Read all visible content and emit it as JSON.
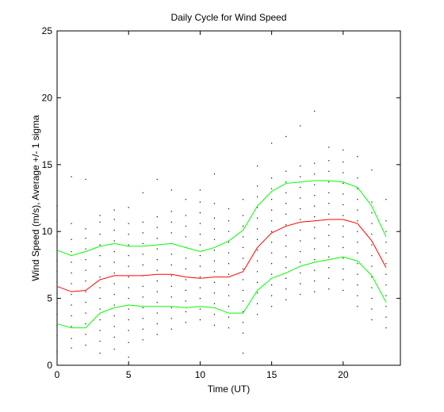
{
  "chart_data": {
    "type": "line",
    "title": "Daily Cycle for Wind Speed",
    "xlabel": "Time (UT)",
    "ylabel": "Wind Speed (m/s), Average +/- 1 sigma",
    "xlim": [
      0,
      24
    ],
    "ylim": [
      0,
      25
    ],
    "xticks": [
      0,
      5,
      10,
      15,
      20
    ],
    "yticks": [
      0,
      5,
      10,
      15,
      20,
      25
    ],
    "grid": false,
    "x": [
      0,
      1,
      2,
      3,
      4,
      5,
      6,
      7,
      8,
      9,
      10,
      11,
      12,
      13,
      14,
      15,
      16,
      17,
      18,
      19,
      20,
      21,
      22,
      23
    ],
    "series": [
      {
        "role": "average",
        "color": "#ff0000",
        "values": [
          5.9,
          5.5,
          5.6,
          6.4,
          6.7,
          6.7,
          6.7,
          6.8,
          6.8,
          6.6,
          6.5,
          6.6,
          6.6,
          7.0,
          8.8,
          9.9,
          10.4,
          10.7,
          10.8,
          10.9,
          10.9,
          10.6,
          9.3,
          7.3
        ]
      },
      {
        "role": "average + 1 sigma",
        "color": "#00ff00",
        "values": [
          8.6,
          8.2,
          8.5,
          8.9,
          9.1,
          8.9,
          8.9,
          9.0,
          9.1,
          8.8,
          8.5,
          8.8,
          9.3,
          10.1,
          11.9,
          13.0,
          13.6,
          13.7,
          13.8,
          13.8,
          13.7,
          13.3,
          11.9,
          9.6
        ]
      },
      {
        "role": "average - 1 sigma",
        "color": "#00ff00",
        "values": [
          3.1,
          2.8,
          2.8,
          3.9,
          4.3,
          4.5,
          4.4,
          4.4,
          4.4,
          4.3,
          4.4,
          4.3,
          3.9,
          3.9,
          5.6,
          6.5,
          6.9,
          7.4,
          7.7,
          7.9,
          8.1,
          7.8,
          6.7,
          4.7
        ]
      }
    ],
    "scatter": {
      "color": "#000000",
      "points": [
        [
          0,
          1.0
        ],
        [
          0,
          2.2
        ],
        [
          0,
          3.0
        ],
        [
          0,
          3.8
        ],
        [
          0,
          4.6
        ],
        [
          0,
          5.4
        ],
        [
          0,
          6.2
        ],
        [
          0,
          7.0
        ],
        [
          0,
          7.8
        ],
        [
          0,
          8.6
        ],
        [
          0,
          9.6
        ],
        [
          0,
          10.8
        ],
        [
          0,
          11.9
        ],
        [
          1,
          1.3
        ],
        [
          1,
          2.0
        ],
        [
          1,
          2.9
        ],
        [
          1,
          3.7
        ],
        [
          1,
          4.5
        ],
        [
          1,
          5.3
        ],
        [
          1,
          6.1
        ],
        [
          1,
          6.9
        ],
        [
          1,
          7.7
        ],
        [
          1,
          8.5
        ],
        [
          1,
          9.4
        ],
        [
          1,
          10.6
        ],
        [
          1,
          14.1
        ],
        [
          2,
          1.5
        ],
        [
          2,
          2.3
        ],
        [
          2,
          3.1
        ],
        [
          2,
          3.9
        ],
        [
          2,
          4.7
        ],
        [
          2,
          5.5
        ],
        [
          2,
          6.3
        ],
        [
          2,
          7.1
        ],
        [
          2,
          7.9
        ],
        [
          2,
          8.7
        ],
        [
          2,
          9.5
        ],
        [
          2,
          10.2
        ],
        [
          2,
          13.9
        ],
        [
          3,
          0.9
        ],
        [
          3,
          1.8
        ],
        [
          3,
          2.6
        ],
        [
          3,
          3.4
        ],
        [
          3,
          4.2
        ],
        [
          3,
          5.0
        ],
        [
          3,
          5.8
        ],
        [
          3,
          6.6
        ],
        [
          3,
          7.4
        ],
        [
          3,
          8.2
        ],
        [
          3,
          9.0
        ],
        [
          3,
          9.8
        ],
        [
          3,
          10.7
        ],
        [
          3,
          11.2
        ],
        [
          4,
          1.2
        ],
        [
          4,
          2.1
        ],
        [
          4,
          2.9
        ],
        [
          4,
          3.7
        ],
        [
          4,
          4.5
        ],
        [
          4,
          5.3
        ],
        [
          4,
          6.1
        ],
        [
          4,
          6.9
        ],
        [
          4,
          7.7
        ],
        [
          4,
          8.5
        ],
        [
          4,
          9.3
        ],
        [
          4,
          10.1
        ],
        [
          4,
          10.9
        ],
        [
          4,
          11.6
        ],
        [
          5,
          0.6
        ],
        [
          5,
          1.7
        ],
        [
          5,
          2.6
        ],
        [
          5,
          3.4
        ],
        [
          5,
          4.2
        ],
        [
          5,
          5.0
        ],
        [
          5,
          5.8
        ],
        [
          5,
          6.6
        ],
        [
          5,
          7.4
        ],
        [
          5,
          8.2
        ],
        [
          5,
          9.0
        ],
        [
          5,
          9.8
        ],
        [
          5,
          10.6
        ],
        [
          5,
          11.8
        ],
        [
          6,
          1.9
        ],
        [
          6,
          2.7
        ],
        [
          6,
          3.5
        ],
        [
          6,
          4.3
        ],
        [
          6,
          5.1
        ],
        [
          6,
          5.9
        ],
        [
          6,
          6.7
        ],
        [
          6,
          7.5
        ],
        [
          6,
          8.3
        ],
        [
          6,
          9.1
        ],
        [
          6,
          9.9
        ],
        [
          6,
          10.7
        ],
        [
          6,
          12.9
        ],
        [
          7,
          2.3
        ],
        [
          7,
          3.1
        ],
        [
          7,
          3.9
        ],
        [
          7,
          4.7
        ],
        [
          7,
          5.5
        ],
        [
          7,
          6.3
        ],
        [
          7,
          7.1
        ],
        [
          7,
          7.9
        ],
        [
          7,
          8.7
        ],
        [
          7,
          9.5
        ],
        [
          7,
          10.3
        ],
        [
          7,
          11.1
        ],
        [
          7,
          13.9
        ],
        [
          8,
          2.7
        ],
        [
          8,
          3.5
        ],
        [
          8,
          4.3
        ],
        [
          8,
          5.1
        ],
        [
          8,
          5.9
        ],
        [
          8,
          6.7
        ],
        [
          8,
          7.5
        ],
        [
          8,
          8.3
        ],
        [
          8,
          9.1
        ],
        [
          8,
          9.9
        ],
        [
          8,
          10.7
        ],
        [
          8,
          11.5
        ],
        [
          8,
          13.1
        ],
        [
          9,
          3.2
        ],
        [
          9,
          4.0
        ],
        [
          9,
          4.8
        ],
        [
          9,
          5.6
        ],
        [
          9,
          6.4
        ],
        [
          9,
          7.2
        ],
        [
          9,
          8.0
        ],
        [
          9,
          8.8
        ],
        [
          9,
          9.6
        ],
        [
          9,
          10.4
        ],
        [
          9,
          11.2
        ],
        [
          9,
          12.4
        ],
        [
          10,
          3.4
        ],
        [
          10,
          4.2
        ],
        [
          10,
          5.0
        ],
        [
          10,
          5.8
        ],
        [
          10,
          6.6
        ],
        [
          10,
          7.4
        ],
        [
          10,
          8.2
        ],
        [
          10,
          9.0
        ],
        [
          10,
          9.8
        ],
        [
          10,
          10.6
        ],
        [
          10,
          11.4
        ],
        [
          10,
          12.2
        ],
        [
          10,
          13.1
        ],
        [
          11,
          3.0
        ],
        [
          11,
          3.8
        ],
        [
          11,
          4.6
        ],
        [
          11,
          5.4
        ],
        [
          11,
          6.2
        ],
        [
          11,
          7.0
        ],
        [
          11,
          7.8
        ],
        [
          11,
          8.6
        ],
        [
          11,
          9.4
        ],
        [
          11,
          10.2
        ],
        [
          11,
          11.0
        ],
        [
          11,
          12.1
        ],
        [
          11,
          14.3
        ],
        [
          12,
          2.8
        ],
        [
          12,
          3.6
        ],
        [
          12,
          4.4
        ],
        [
          12,
          5.2
        ],
        [
          12,
          6.0
        ],
        [
          12,
          6.8
        ],
        [
          12,
          7.6
        ],
        [
          12,
          8.4
        ],
        [
          12,
          9.2
        ],
        [
          12,
          10.0
        ],
        [
          12,
          10.8
        ],
        [
          12,
          11.7
        ],
        [
          13,
          0.9
        ],
        [
          13,
          2.4
        ],
        [
          13,
          3.2
        ],
        [
          13,
          4.0
        ],
        [
          13,
          4.8
        ],
        [
          13,
          5.6
        ],
        [
          13,
          6.4
        ],
        [
          13,
          7.2
        ],
        [
          13,
          8.0
        ],
        [
          13,
          8.8
        ],
        [
          13,
          9.6
        ],
        [
          13,
          10.4
        ],
        [
          13,
          11.2
        ],
        [
          13,
          12.4
        ],
        [
          14,
          3.8
        ],
        [
          14,
          4.6
        ],
        [
          14,
          5.4
        ],
        [
          14,
          6.2
        ],
        [
          14,
          7.0
        ],
        [
          14,
          7.8
        ],
        [
          14,
          8.6
        ],
        [
          14,
          9.4
        ],
        [
          14,
          10.2
        ],
        [
          14,
          11.0
        ],
        [
          14,
          11.8
        ],
        [
          14,
          12.6
        ],
        [
          14,
          13.4
        ],
        [
          14,
          14.9
        ],
        [
          15,
          4.4
        ],
        [
          15,
          5.2
        ],
        [
          15,
          6.0
        ],
        [
          15,
          6.8
        ],
        [
          15,
          7.6
        ],
        [
          15,
          8.4
        ],
        [
          15,
          9.2
        ],
        [
          15,
          10.0
        ],
        [
          15,
          10.8
        ],
        [
          15,
          11.6
        ],
        [
          15,
          12.4
        ],
        [
          15,
          13.2
        ],
        [
          15,
          14.0
        ],
        [
          15,
          16.6
        ],
        [
          16,
          4.9
        ],
        [
          16,
          5.7
        ],
        [
          16,
          6.5
        ],
        [
          16,
          7.3
        ],
        [
          16,
          8.1
        ],
        [
          16,
          8.9
        ],
        [
          16,
          9.7
        ],
        [
          16,
          10.5
        ],
        [
          16,
          11.3
        ],
        [
          16,
          12.1
        ],
        [
          16,
          12.9
        ],
        [
          16,
          13.7
        ],
        [
          16,
          14.5
        ],
        [
          16,
          17.1
        ],
        [
          17,
          5.3
        ],
        [
          17,
          6.1
        ],
        [
          17,
          6.9
        ],
        [
          17,
          7.7
        ],
        [
          17,
          8.5
        ],
        [
          17,
          9.3
        ],
        [
          17,
          10.1
        ],
        [
          17,
          10.9
        ],
        [
          17,
          11.7
        ],
        [
          17,
          12.5
        ],
        [
          17,
          13.3
        ],
        [
          17,
          14.1
        ],
        [
          17,
          14.9
        ],
        [
          17,
          17.9
        ],
        [
          18,
          5.5
        ],
        [
          18,
          6.3
        ],
        [
          18,
          7.1
        ],
        [
          18,
          7.9
        ],
        [
          18,
          8.7
        ],
        [
          18,
          9.5
        ],
        [
          18,
          10.3
        ],
        [
          18,
          11.1
        ],
        [
          18,
          11.9
        ],
        [
          18,
          12.7
        ],
        [
          18,
          13.5
        ],
        [
          18,
          14.3
        ],
        [
          18,
          15.1
        ],
        [
          18,
          19.0
        ],
        [
          19,
          5.7
        ],
        [
          19,
          6.5
        ],
        [
          19,
          7.3
        ],
        [
          19,
          8.1
        ],
        [
          19,
          8.9
        ],
        [
          19,
          9.7
        ],
        [
          19,
          10.5
        ],
        [
          19,
          11.3
        ],
        [
          19,
          12.1
        ],
        [
          19,
          12.9
        ],
        [
          19,
          13.7
        ],
        [
          19,
          14.5
        ],
        [
          19,
          15.3
        ],
        [
          19,
          16.3
        ],
        [
          20,
          5.6
        ],
        [
          20,
          6.4
        ],
        [
          20,
          7.2
        ],
        [
          20,
          8.0
        ],
        [
          20,
          8.8
        ],
        [
          20,
          9.6
        ],
        [
          20,
          10.4
        ],
        [
          20,
          11.2
        ],
        [
          20,
          12.0
        ],
        [
          20,
          12.8
        ],
        [
          20,
          13.6
        ],
        [
          20,
          14.4
        ],
        [
          20,
          15.2
        ],
        [
          20,
          16.1
        ],
        [
          21,
          4.4
        ],
        [
          21,
          5.2
        ],
        [
          21,
          6.0
        ],
        [
          21,
          6.8
        ],
        [
          21,
          7.6
        ],
        [
          21,
          8.4
        ],
        [
          21,
          9.2
        ],
        [
          21,
          10.0
        ],
        [
          21,
          10.8
        ],
        [
          21,
          11.6
        ],
        [
          21,
          12.4
        ],
        [
          21,
          13.2
        ],
        [
          21,
          14.0
        ],
        [
          21,
          15.6
        ],
        [
          22,
          3.4
        ],
        [
          22,
          4.2
        ],
        [
          22,
          5.0
        ],
        [
          22,
          5.8
        ],
        [
          22,
          6.6
        ],
        [
          22,
          7.4
        ],
        [
          22,
          8.2
        ],
        [
          22,
          9.0
        ],
        [
          22,
          9.8
        ],
        [
          22,
          10.6
        ],
        [
          22,
          11.4
        ],
        [
          22,
          12.2
        ],
        [
          22,
          14.6
        ],
        [
          23,
          2.8
        ],
        [
          23,
          3.6
        ],
        [
          23,
          4.4
        ],
        [
          23,
          5.2
        ],
        [
          23,
          6.0
        ],
        [
          23,
          6.8
        ],
        [
          23,
          7.6
        ],
        [
          23,
          8.4
        ],
        [
          23,
          9.2
        ],
        [
          23,
          10.0
        ],
        [
          23,
          10.8
        ],
        [
          23,
          12.4
        ]
      ]
    }
  }
}
